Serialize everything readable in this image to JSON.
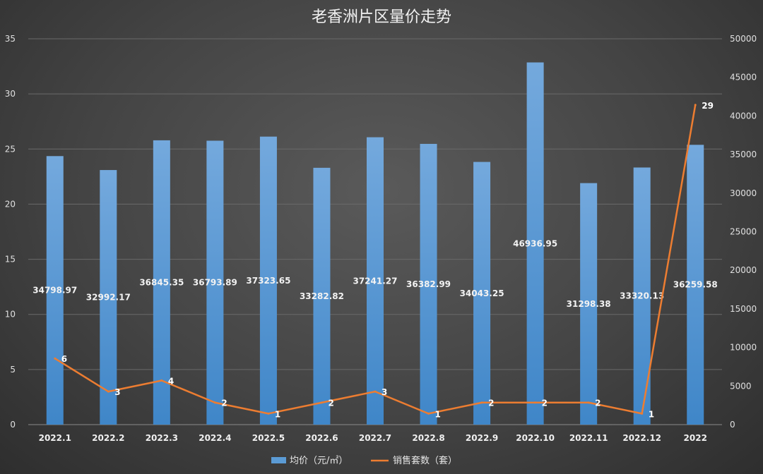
{
  "chart_data": {
    "type": "bar+line",
    "title": "老香洲片区量价走势",
    "categories": [
      "2022.1",
      "2022.2",
      "2022.3",
      "2022.4",
      "2022.5",
      "2022.6",
      "2022.7",
      "2022.8",
      "2022.9",
      "2022.10",
      "2022.11",
      "2022.12",
      "2022"
    ],
    "series": [
      {
        "name": "均价（元/㎡）",
        "type": "bar",
        "axis": "right",
        "color": "#5b9bd5",
        "values": [
          34798.97,
          32992.17,
          36845.35,
          36793.89,
          37323.65,
          33282.82,
          37241.27,
          36382.99,
          34043.25,
          46936.95,
          31298.38,
          33320.13,
          36259.58
        ],
        "labels": [
          "34798.97",
          "32992.17",
          "36845.35",
          "36793.89",
          "37323.65",
          "33282.82",
          "37241.27",
          "36382.99",
          "34043.25",
          "46936.95",
          "31298.38",
          "33320.13",
          "36259.58"
        ]
      },
      {
        "name": "销售套数（套）",
        "type": "line",
        "axis": "left",
        "color": "#ed7d31",
        "values": [
          6,
          3,
          4,
          2,
          1,
          2,
          3,
          1,
          2,
          2,
          2,
          1,
          29
        ],
        "labels": [
          "6",
          "3",
          "4",
          "2",
          "1",
          "2",
          "3",
          "1",
          "2",
          "2",
          "2",
          "1",
          "29"
        ]
      }
    ],
    "y_left": {
      "min": 0,
      "max": 35,
      "step": 5,
      "ticks": [
        "0",
        "5",
        "10",
        "15",
        "20",
        "25",
        "30",
        "35"
      ]
    },
    "y_right": {
      "min": 0,
      "max": 50000,
      "step": 5000,
      "ticks": [
        "0",
        "5000",
        "10000",
        "15000",
        "20000",
        "25000",
        "30000",
        "35000",
        "40000",
        "45000",
        "50000"
      ]
    },
    "grid": true,
    "legend": "bottom-center"
  }
}
